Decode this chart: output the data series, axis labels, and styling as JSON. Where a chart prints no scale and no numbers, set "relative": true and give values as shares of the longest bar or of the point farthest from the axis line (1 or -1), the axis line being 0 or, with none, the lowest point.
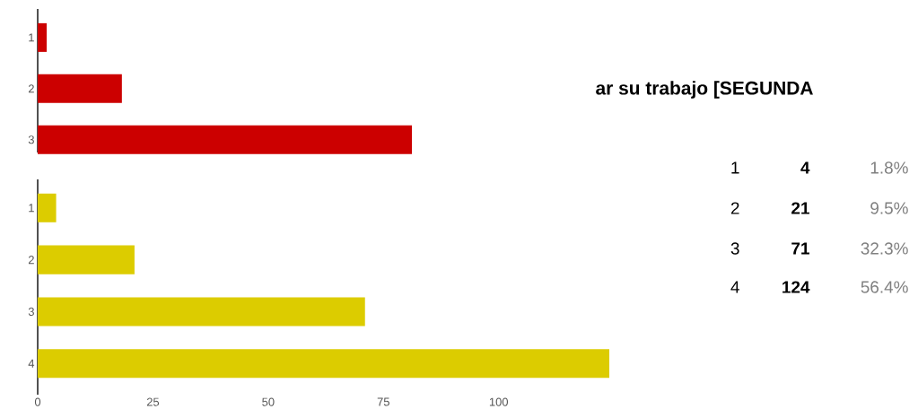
{
  "chart_data": [
    {
      "type": "bar",
      "orientation": "horizontal",
      "categories": [
        "1",
        "2",
        "3"
      ],
      "values": [
        0.024,
        0.225,
        1
      ],
      "color": "#cc0000",
      "relative": true,
      "tick_labels": "y"
    },
    {
      "type": "bar",
      "orientation": "horizontal",
      "title": "ar su trabajo [SEGUNDA",
      "categories": [
        "1",
        "2",
        "3",
        "4"
      ],
      "values": [
        4,
        21,
        71,
        124
      ],
      "color": "#dccc00",
      "xlim": [
        0,
        124
      ],
      "xticks": [
        0,
        25,
        50,
        75,
        100
      ],
      "annotations": [
        "4",
        "1.8%",
        "21",
        "9.5%",
        "71",
        "32.3%",
        "124",
        "56.4%"
      ]
    }
  ]
}
